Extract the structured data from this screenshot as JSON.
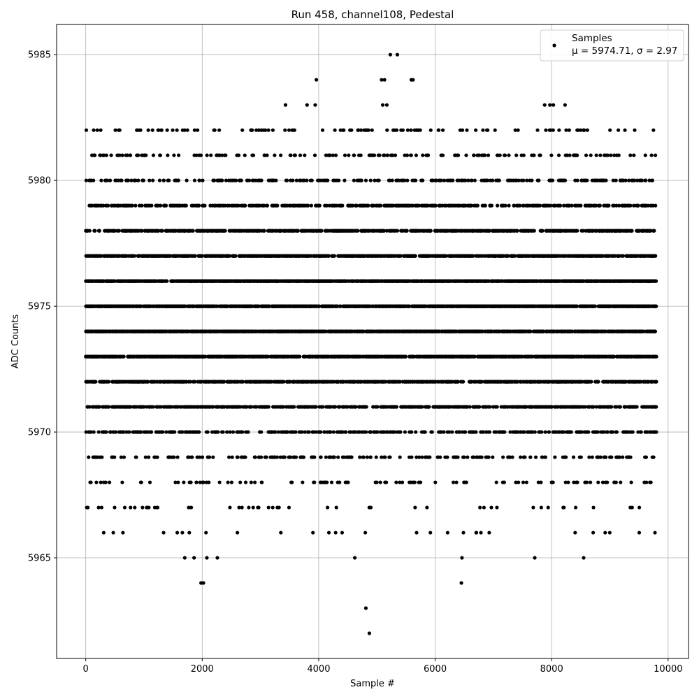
{
  "chart_data": {
    "type": "scatter",
    "title": "Run 458, channel108, Pedestal",
    "xlabel": "Sample #",
    "ylabel": "ADC Counts",
    "xlim": [
      -500,
      10350
    ],
    "ylim": [
      5961.0,
      5986.2
    ],
    "xticks": [
      0,
      2000,
      4000,
      6000,
      8000,
      10000
    ],
    "yticks": [
      5965,
      5970,
      5975,
      5980,
      5985
    ],
    "grid": true,
    "legend": {
      "placement": "top-right",
      "entries": [
        "Samples",
        "μ = 5974.71, σ = 2.97"
      ]
    },
    "marker_color": "#000000",
    "series": [
      {
        "name": "Samples",
        "count": 9800,
        "x_start": 0,
        "x_step": 1,
        "mean": 5974.71,
        "std": 2.97
      }
    ],
    "highlighted_points": [
      {
        "x": 5230,
        "y": 5985
      },
      {
        "x": 5350,
        "y": 5985
      },
      {
        "x": 3960,
        "y": 5984
      },
      {
        "x": 5080,
        "y": 5984
      },
      {
        "x": 5130,
        "y": 5984
      },
      {
        "x": 5590,
        "y": 5984
      },
      {
        "x": 5620,
        "y": 5984
      },
      {
        "x": 3430,
        "y": 5983
      },
      {
        "x": 3800,
        "y": 5983
      },
      {
        "x": 3940,
        "y": 5983
      },
      {
        "x": 5100,
        "y": 5983
      },
      {
        "x": 5170,
        "y": 5983
      },
      {
        "x": 7880,
        "y": 5983
      },
      {
        "x": 7970,
        "y": 5983
      },
      {
        "x": 8030,
        "y": 5983
      },
      {
        "x": 8230,
        "y": 5983
      },
      {
        "x": 1700,
        "y": 5965
      },
      {
        "x": 1860,
        "y": 5965
      },
      {
        "x": 2080,
        "y": 5965
      },
      {
        "x": 2260,
        "y": 5965
      },
      {
        "x": 4620,
        "y": 5965
      },
      {
        "x": 6460,
        "y": 5965
      },
      {
        "x": 7710,
        "y": 5965
      },
      {
        "x": 8550,
        "y": 5965
      },
      {
        "x": 1980,
        "y": 5964
      },
      {
        "x": 2020,
        "y": 5964
      },
      {
        "x": 6450,
        "y": 5964
      },
      {
        "x": 4810,
        "y": 5963
      },
      {
        "x": 4870,
        "y": 5962
      }
    ]
  }
}
